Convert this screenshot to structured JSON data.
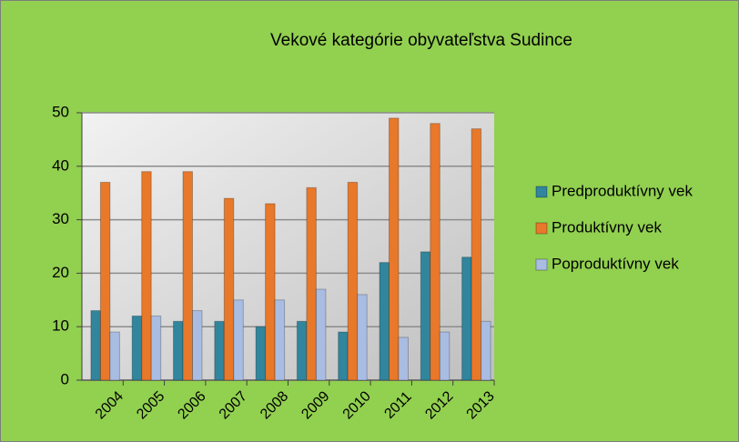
{
  "chart_data": {
    "type": "bar",
    "title": "Vekové kategórie obyvateľstva  Sudince",
    "categories": [
      "2004",
      "2005",
      "2006",
      "2007",
      "2008",
      "2009",
      "2010",
      "2011",
      "2012",
      "2013"
    ],
    "series": [
      {
        "name": "Predproduktívny vek",
        "color": "#31859c",
        "values": [
          13,
          12,
          11,
          11,
          10,
          11,
          9,
          22,
          24,
          23
        ]
      },
      {
        "name": "Produktívny vek",
        "color": "#e8782a",
        "values": [
          37,
          39,
          39,
          34,
          33,
          36,
          37,
          49,
          48,
          47
        ]
      },
      {
        "name": "Poproduktívny vek",
        "color": "#a9bde3",
        "values": [
          9,
          12,
          13,
          15,
          15,
          17,
          16,
          8,
          9,
          11
        ]
      }
    ],
    "ylim": [
      0,
      50
    ],
    "yticks": [
      0,
      10,
      20,
      30,
      40,
      50
    ],
    "grid": true,
    "legend": "right"
  }
}
